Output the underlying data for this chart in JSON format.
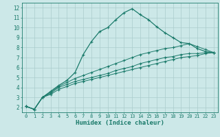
{
  "background_color": "#cce8e8",
  "grid_color": "#aacccc",
  "line_color": "#1a7a6a",
  "xlabel": "Humidex (Indice chaleur)",
  "xlim": [
    -0.5,
    23.5
  ],
  "ylim": [
    1.5,
    12.5
  ],
  "yticks": [
    2,
    3,
    4,
    5,
    6,
    7,
    8,
    9,
    10,
    11,
    12
  ],
  "xticks": [
    0,
    1,
    2,
    3,
    4,
    5,
    6,
    7,
    8,
    9,
    10,
    11,
    12,
    13,
    14,
    15,
    16,
    17,
    18,
    19,
    20,
    21,
    22,
    23
  ],
  "lines": [
    {
      "x": [
        0,
        1,
        2,
        3,
        4,
        5,
        6,
        7,
        8,
        9,
        10,
        11,
        12,
        13,
        14,
        15,
        16,
        17,
        18,
        19,
        20,
        21,
        22,
        23
      ],
      "y": [
        2.1,
        1.8,
        3.0,
        3.6,
        4.2,
        4.7,
        5.5,
        7.3,
        8.6,
        9.6,
        10.0,
        10.8,
        11.5,
        11.9,
        11.3,
        10.8,
        10.1,
        9.5,
        9.0,
        8.5,
        8.4,
        7.9,
        7.6,
        7.5
      ]
    },
    {
      "x": [
        0,
        1,
        2,
        3,
        4,
        5,
        6,
        7,
        8,
        9,
        10,
        11,
        12,
        13,
        14,
        15,
        16,
        17,
        18,
        19,
        20,
        21,
        22,
        23
      ],
      "y": [
        2.1,
        1.8,
        3.0,
        3.5,
        4.1,
        4.5,
        4.9,
        5.2,
        5.5,
        5.8,
        6.1,
        6.4,
        6.7,
        7.0,
        7.3,
        7.5,
        7.7,
        7.9,
        8.0,
        8.2,
        8.4,
        8.1,
        7.8,
        7.5
      ]
    },
    {
      "x": [
        0,
        1,
        2,
        3,
        4,
        5,
        6,
        7,
        8,
        9,
        10,
        11,
        12,
        13,
        14,
        15,
        16,
        17,
        18,
        19,
        20,
        21,
        22,
        23
      ],
      "y": [
        2.1,
        1.8,
        3.0,
        3.4,
        4.0,
        4.3,
        4.6,
        4.8,
        5.0,
        5.2,
        5.4,
        5.7,
        5.9,
        6.1,
        6.4,
        6.6,
        6.8,
        7.0,
        7.1,
        7.3,
        7.4,
        7.4,
        7.5,
        7.5
      ]
    },
    {
      "x": [
        0,
        1,
        2,
        3,
        4,
        5,
        6,
        7,
        8,
        9,
        10,
        11,
        12,
        13,
        14,
        15,
        16,
        17,
        18,
        19,
        20,
        21,
        22,
        23
      ],
      "y": [
        2.1,
        1.8,
        3.0,
        3.3,
        3.8,
        4.1,
        4.4,
        4.6,
        4.8,
        5.0,
        5.2,
        5.4,
        5.6,
        5.8,
        6.0,
        6.2,
        6.4,
        6.6,
        6.8,
        7.0,
        7.1,
        7.2,
        7.4,
        7.5
      ]
    }
  ]
}
